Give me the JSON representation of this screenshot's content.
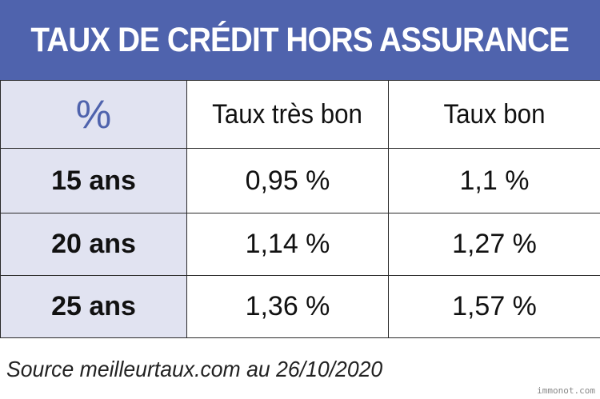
{
  "title": "TAUX DE CRÉDIT HORS ASSURANCE",
  "table": {
    "corner_symbol": "%",
    "columns": [
      "Taux très bon",
      "Taux bon"
    ],
    "rows": [
      {
        "label": "15 ans",
        "values": [
          "0,95 %",
          "1,1 %"
        ]
      },
      {
        "label": "20 ans",
        "values": [
          "1,14 %",
          "1,27 %"
        ]
      },
      {
        "label": "25 ans",
        "values": [
          "1,36 %",
          "1,57 %"
        ]
      }
    ]
  },
  "source": "Source meilleurtaux.com au 26/10/2020",
  "watermark": "immonot.com",
  "colors": {
    "banner": "#4f63ad",
    "row_header_bg": "#e1e3f1",
    "percent_symbol": "#4f63ad"
  }
}
